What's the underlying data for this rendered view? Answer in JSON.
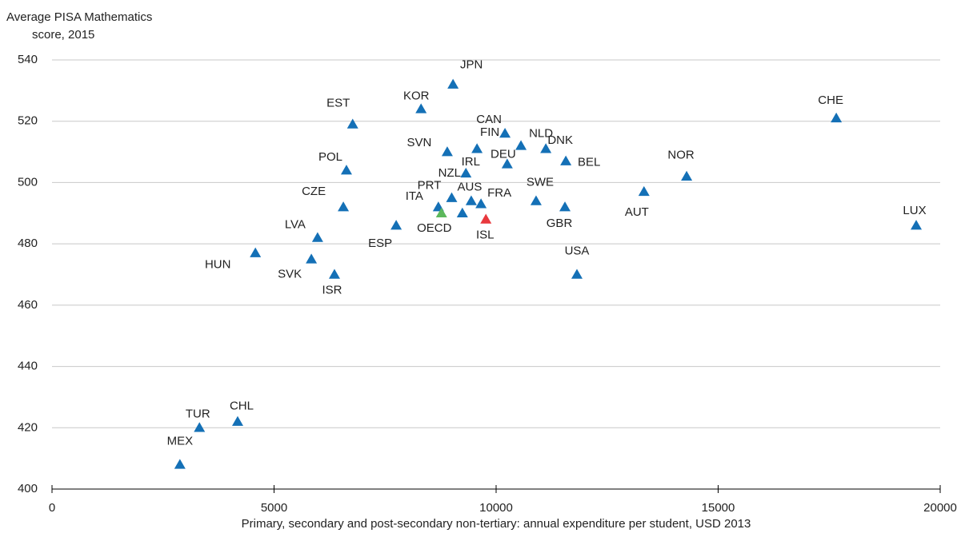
{
  "chart_data": {
    "type": "scatter",
    "ylabel": [
      "Average PISA Mathematics",
      "score, 2015"
    ],
    "xlabel": "Primary, secondary and post-secondary non-tertiary: annual expenditure per student, USD 2013",
    "xlim": [
      0,
      20000
    ],
    "xticks": [
      0,
      5000,
      10000,
      15000,
      20000
    ],
    "ylim": [
      400,
      540
    ],
    "yticks": [
      400,
      420,
      440,
      460,
      480,
      500,
      520,
      540
    ],
    "grid": true,
    "points": [
      {
        "label": "JPN",
        "x": 9030,
        "y": 532,
        "color": "#1470b6"
      },
      {
        "label": "KOR",
        "x": 8310,
        "y": 524,
        "color": "#1470b6"
      },
      {
        "label": "EST",
        "x": 6770,
        "y": 519,
        "color": "#1470b6"
      },
      {
        "label": "CHE",
        "x": 17660,
        "y": 521,
        "color": "#1470b6"
      },
      {
        "label": "CAN",
        "x": 10200,
        "y": 516,
        "color": "#1470b6"
      },
      {
        "label": "NLD",
        "x": 10560,
        "y": 512,
        "color": "#1470b6"
      },
      {
        "label": "DNK",
        "x": 11120,
        "y": 511,
        "color": "#1470b6"
      },
      {
        "label": "FIN",
        "x": 9570,
        "y": 511,
        "color": "#1470b6"
      },
      {
        "label": "SVN",
        "x": 8900,
        "y": 510,
        "color": "#1470b6"
      },
      {
        "label": "DEU",
        "x": 10250,
        "y": 506,
        "color": "#1470b6"
      },
      {
        "label": "BEL",
        "x": 11570,
        "y": 507,
        "color": "#1470b6"
      },
      {
        "label": "POL",
        "x": 6630,
        "y": 504,
        "color": "#1470b6"
      },
      {
        "label": "IRL",
        "x": 9320,
        "y": 503,
        "color": "#1470b6"
      },
      {
        "label": "NOR",
        "x": 14290,
        "y": 502,
        "color": "#1470b6"
      },
      {
        "label": "AUT",
        "x": 13330,
        "y": 497,
        "color": "#1470b6"
      },
      {
        "label": "NZL",
        "x": 9240,
        "y": 490,
        "color": "#1470b6"
      },
      {
        "label": "AUS",
        "x": 9440,
        "y": 494,
        "color": "#1470b6"
      },
      {
        "label": "FRA",
        "x": 9660,
        "y": 493,
        "color": "#1470b6"
      },
      {
        "label": "SWE",
        "x": 10900,
        "y": 494,
        "color": "#1470b6"
      },
      {
        "label": "GBR",
        "x": 11550,
        "y": 492,
        "color": "#1470b6"
      },
      {
        "label": "CZE",
        "x": 6560,
        "y": 492,
        "color": "#1470b6"
      },
      {
        "label": "PRT",
        "x": 9000,
        "y": 495,
        "color": "#1470b6"
      },
      {
        "label": "ITA",
        "x": 8700,
        "y": 492,
        "color": "#1470b6"
      },
      {
        "label": "OECD",
        "x": 8770,
        "y": 490,
        "color": "#5cb85c"
      },
      {
        "label": "ISL",
        "x": 9770,
        "y": 488,
        "color": "#e8383d"
      },
      {
        "label": "ESP",
        "x": 7750,
        "y": 486,
        "color": "#1470b6"
      },
      {
        "label": "LUX",
        "x": 19460,
        "y": 486,
        "color": "#1470b6"
      },
      {
        "label": "LVA",
        "x": 5980,
        "y": 482,
        "color": "#1470b6"
      },
      {
        "label": "HUN",
        "x": 4580,
        "y": 477,
        "color": "#1470b6"
      },
      {
        "label": "SVK",
        "x": 5840,
        "y": 475,
        "color": "#1470b6"
      },
      {
        "label": "ISR",
        "x": 6360,
        "y": 470,
        "color": "#1470b6"
      },
      {
        "label": "USA",
        "x": 11820,
        "y": 470,
        "color": "#1470b6"
      },
      {
        "label": "CHL",
        "x": 4180,
        "y": 422,
        "color": "#1470b6"
      },
      {
        "label": "TUR",
        "x": 3320,
        "y": 420,
        "color": "#1470b6"
      },
      {
        "label": "MEX",
        "x": 2880,
        "y": 408,
        "color": "#1470b6"
      }
    ]
  }
}
